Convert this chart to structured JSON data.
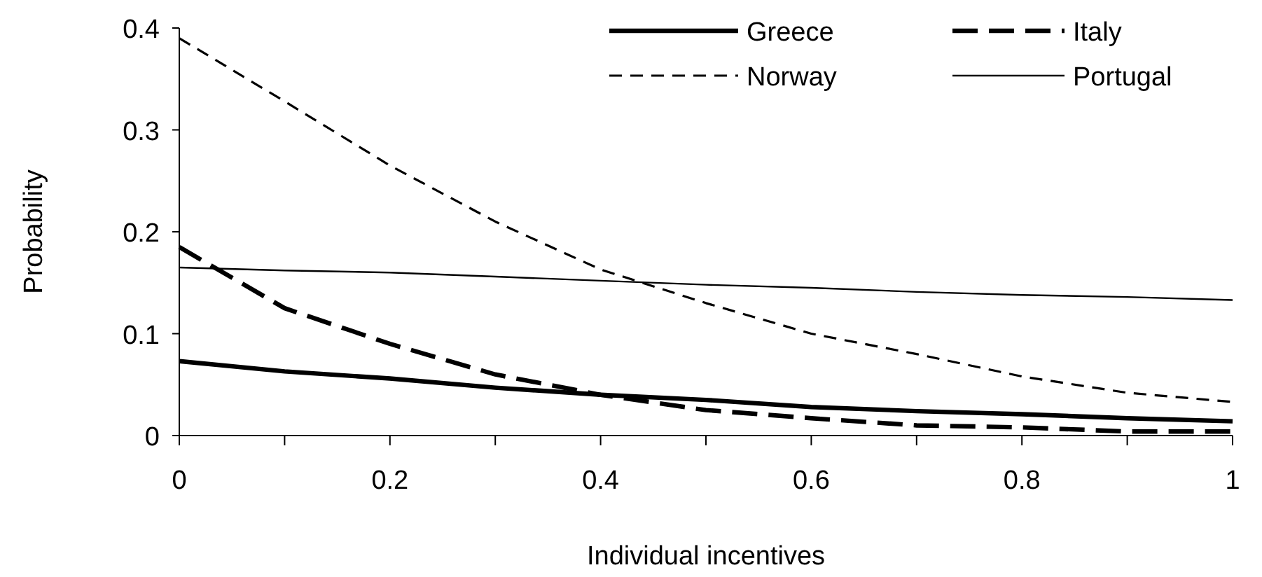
{
  "chart_data": {
    "type": "line",
    "xlabel": "Individual incentives",
    "ylabel": "Probability",
    "xlim": [
      0,
      1
    ],
    "ylim": [
      0,
      0.4
    ],
    "xticks": [
      0,
      {
        "value": 0.1,
        "label": null
      },
      0.2,
      {
        "value": 0.3,
        "label": null
      },
      0.4,
      {
        "value": 0.5,
        "label": null
      },
      0.6,
      {
        "value": 0.7,
        "label": null
      },
      0.8,
      {
        "value": 0.9,
        "label": null
      },
      1
    ],
    "yticks": [
      0,
      0.1,
      0.2,
      0.3,
      0.4
    ],
    "grid": false,
    "legend": "top right",
    "x": [
      0,
      0.1,
      0.2,
      0.3,
      0.4,
      0.5,
      0.6,
      0.7,
      0.8,
      0.9,
      1
    ],
    "series": [
      {
        "name": "Greece",
        "color": "#000000",
        "line_style": "solid",
        "values": [
          0.073,
          0.063,
          0.056,
          0.047,
          0.04,
          0.035,
          0.028,
          0.024,
          0.021,
          0.017,
          0.014
        ]
      },
      {
        "name": "Italy",
        "color": "#000000",
        "line_style": "dashed",
        "values": [
          0.185,
          0.125,
          0.09,
          0.06,
          0.04,
          0.025,
          0.017,
          0.01,
          0.008,
          0.004,
          0.004
        ]
      },
      {
        "name": "Norway",
        "color": "#000000",
        "line_style": "dashed",
        "values": [
          0.39,
          0.328,
          0.265,
          0.21,
          0.163,
          0.13,
          0.1,
          0.08,
          0.058,
          0.042,
          0.033
        ]
      },
      {
        "name": "Portugal",
        "color": "#000000",
        "line_style": "solid",
        "values": [
          0.165,
          0.162,
          0.16,
          0.156,
          0.152,
          0.148,
          0.145,
          0.141,
          0.138,
          0.136,
          0.133
        ]
      }
    ]
  }
}
